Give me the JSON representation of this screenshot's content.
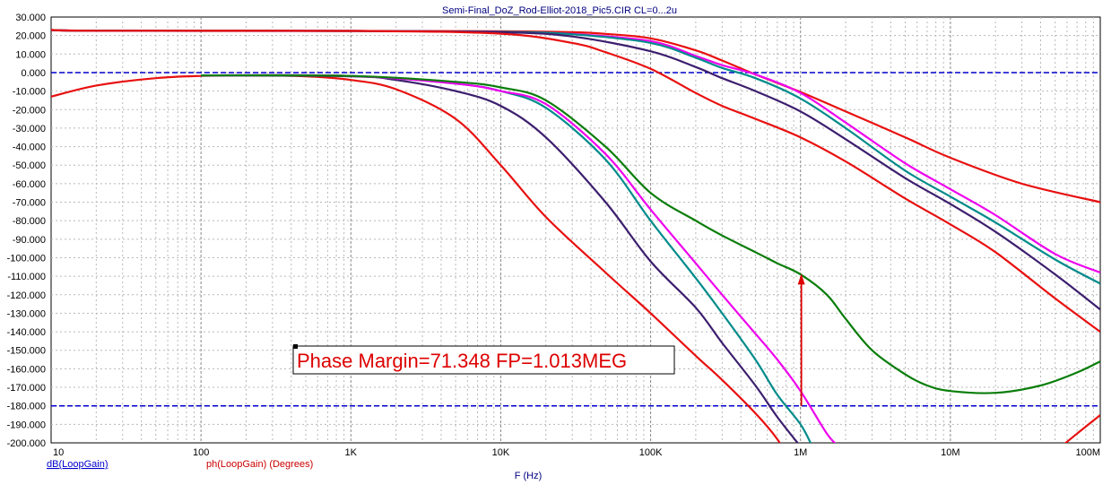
{
  "chart_data": {
    "type": "line",
    "title": "Semi-Final_DoZ_Rod-Elliot-2018_Pic5.CIR CL=0...2u",
    "xlabel": "F (Hz)",
    "ylabel_primary": "dB(LoopGain)",
    "ylabel_secondary": "ph(LoopGain) (Degrees)",
    "x_scale": "log",
    "xlim": [
      10,
      100000000
    ],
    "ylim": [
      -200,
      30
    ],
    "grid": true,
    "x_ticks": [
      {
        "value": 10,
        "label": "10"
      },
      {
        "value": 100,
        "label": "100"
      },
      {
        "value": 1000,
        "label": "1K"
      },
      {
        "value": 10000,
        "label": "10K"
      },
      {
        "value": 100000,
        "label": "100K"
      },
      {
        "value": 1000000,
        "label": "1M"
      },
      {
        "value": 10000000,
        "label": "10M"
      },
      {
        "value": 100000000,
        "label": "100M"
      }
    ],
    "y_ticks": [
      30,
      20,
      10,
      0,
      -10,
      -20,
      -30,
      -40,
      -50,
      -60,
      -70,
      -80,
      -90,
      -100,
      -110,
      -120,
      -130,
      -140,
      -150,
      -160,
      -170,
      -180,
      -190,
      -200
    ],
    "y_tick_labels": [
      "30.000",
      "20.000",
      "10.000",
      "0.000",
      "-10.000",
      "-20.000",
      "-30.000",
      "-40.000",
      "-50.000",
      "-60.000",
      "-70.000",
      "-80.000",
      "-90.000",
      "-100.000",
      "-110.000",
      "-120.000",
      "-130.000",
      "-140.000",
      "-150.000",
      "-160.000",
      "-170.000",
      "-180.000",
      "-190.000",
      "-200.000"
    ],
    "reference_lines": [
      {
        "y": 0,
        "color": "#0000cc",
        "style": "dashed"
      },
      {
        "y": -180,
        "color": "#0000cc",
        "style": "dashed"
      }
    ],
    "series": [
      {
        "group": "gain",
        "color": "#e81010",
        "points": [
          [
            10,
            23
          ],
          [
            20,
            22.6
          ],
          [
            100,
            22.5
          ],
          [
            1000,
            22.5
          ],
          [
            10000,
            22.3
          ],
          [
            30000,
            21.8
          ],
          [
            50000,
            20.9
          ],
          [
            100000,
            18.5
          ],
          [
            200000,
            12
          ],
          [
            300000,
            6.5
          ],
          [
            500000,
            -1
          ],
          [
            1000000,
            -10.5
          ],
          [
            2000000,
            -21
          ],
          [
            5000000,
            -35
          ],
          [
            10000000,
            -46
          ],
          [
            30000000,
            -60
          ],
          [
            100000000,
            -70
          ]
        ]
      },
      {
        "group": "gain",
        "color": "#ee00ee",
        "points": [
          [
            10,
            23
          ],
          [
            20,
            22.6
          ],
          [
            1000,
            22.5
          ],
          [
            10000,
            22
          ],
          [
            30000,
            20.9
          ],
          [
            100000,
            17
          ],
          [
            200000,
            9
          ],
          [
            300000,
            4
          ],
          [
            500000,
            -1
          ],
          [
            1000000,
            -11
          ],
          [
            2000000,
            -27
          ],
          [
            5000000,
            -49
          ],
          [
            10000000,
            -63
          ],
          [
            20000000,
            -77
          ],
          [
            50000000,
            -98
          ],
          [
            100000000,
            -108
          ]
        ]
      },
      {
        "group": "gain",
        "color": "#008b8b",
        "points": [
          [
            10,
            23
          ],
          [
            20,
            22.6
          ],
          [
            1000,
            22.5
          ],
          [
            10000,
            22
          ],
          [
            30000,
            20.7
          ],
          [
            100000,
            16
          ],
          [
            200000,
            8
          ],
          [
            300000,
            2.5
          ],
          [
            500000,
            -3
          ],
          [
            1000000,
            -14
          ],
          [
            2000000,
            -30
          ],
          [
            5000000,
            -53
          ],
          [
            10000000,
            -67
          ],
          [
            20000000,
            -81
          ],
          [
            50000000,
            -101
          ],
          [
            100000000,
            -114
          ]
        ]
      },
      {
        "group": "gain",
        "color": "#3c1e6e",
        "points": [
          [
            10,
            23
          ],
          [
            20,
            22.6
          ],
          [
            1000,
            22.5
          ],
          [
            10000,
            21.8
          ],
          [
            30000,
            19.5
          ],
          [
            100000,
            11.5
          ],
          [
            200000,
            3
          ],
          [
            300000,
            -3
          ],
          [
            500000,
            -10
          ],
          [
            1000000,
            -21
          ],
          [
            2000000,
            -36
          ],
          [
            5000000,
            -57
          ],
          [
            10000000,
            -71
          ],
          [
            20000000,
            -86
          ],
          [
            50000000,
            -109
          ],
          [
            100000000,
            -128
          ]
        ]
      },
      {
        "group": "gain",
        "color": "#e81010",
        "points": [
          [
            10,
            23
          ],
          [
            20,
            22.6
          ],
          [
            1000,
            22.5
          ],
          [
            10000,
            21
          ],
          [
            30000,
            16
          ],
          [
            50000,
            11
          ],
          [
            100000,
            2
          ],
          [
            200000,
            -11
          ],
          [
            300000,
            -18
          ],
          [
            500000,
            -25
          ],
          [
            1000000,
            -35
          ],
          [
            2000000,
            -48
          ],
          [
            5000000,
            -68
          ],
          [
            10000000,
            -82
          ],
          [
            20000000,
            -97
          ],
          [
            50000000,
            -122
          ],
          [
            100000000,
            -140
          ]
        ]
      },
      {
        "group": "phase",
        "color": "#e81010",
        "points": [
          [
            10,
            -13
          ],
          [
            20,
            -7
          ],
          [
            50,
            -3
          ],
          [
            100,
            -1.8
          ],
          [
            200,
            -1.5
          ],
          [
            500,
            -2
          ],
          [
            1000,
            -4
          ],
          [
            2000,
            -9
          ],
          [
            5000,
            -25
          ],
          [
            10000,
            -50
          ],
          [
            20000,
            -78
          ],
          [
            50000,
            -108
          ],
          [
            100000,
            -130
          ],
          [
            200000,
            -153
          ],
          [
            300000,
            -166
          ],
          [
            500000,
            -184
          ],
          [
            700000,
            -198
          ],
          [
            850000,
            -210
          ]
        ]
      },
      {
        "group": "phase",
        "color": "#3c1e6e",
        "points": [
          [
            100,
            -1.5
          ],
          [
            1000,
            -2
          ],
          [
            2000,
            -4
          ],
          [
            5000,
            -10
          ],
          [
            10000,
            -18
          ],
          [
            20000,
            -35
          ],
          [
            50000,
            -70
          ],
          [
            100000,
            -102
          ],
          [
            200000,
            -127
          ],
          [
            300000,
            -146
          ],
          [
            500000,
            -169
          ],
          [
            700000,
            -186
          ],
          [
            1000000,
            -202
          ]
        ]
      },
      {
        "group": "phase",
        "color": "#008b8b",
        "points": [
          [
            100,
            -1.5
          ],
          [
            1000,
            -1.8
          ],
          [
            5000,
            -6
          ],
          [
            10000,
            -10
          ],
          [
            20000,
            -19
          ],
          [
            50000,
            -47
          ],
          [
            100000,
            -80
          ],
          [
            200000,
            -111
          ],
          [
            300000,
            -130
          ],
          [
            500000,
            -155
          ],
          [
            700000,
            -174
          ],
          [
            1000000,
            -190
          ],
          [
            1200000,
            -202
          ]
        ]
      },
      {
        "group": "phase",
        "color": "#ee00ee",
        "points": [
          [
            100,
            -1.5
          ],
          [
            1000,
            -1.8
          ],
          [
            5000,
            -6
          ],
          [
            10000,
            -10
          ],
          [
            20000,
            -17
          ],
          [
            50000,
            -44
          ],
          [
            100000,
            -74
          ],
          [
            200000,
            -103
          ],
          [
            300000,
            -120
          ],
          [
            500000,
            -141
          ],
          [
            700000,
            -155
          ],
          [
            1000000,
            -172
          ],
          [
            1500000,
            -195
          ],
          [
            1800000,
            -202
          ]
        ]
      },
      {
        "group": "phase",
        "color": "#0a7d0a",
        "points": [
          [
            100,
            -1.5
          ],
          [
            1000,
            -1.8
          ],
          [
            5000,
            -5
          ],
          [
            10000,
            -8
          ],
          [
            20000,
            -15
          ],
          [
            50000,
            -40
          ],
          [
            100000,
            -65
          ],
          [
            200000,
            -80
          ],
          [
            300000,
            -88
          ],
          [
            500000,
            -97
          ],
          [
            700000,
            -103
          ],
          [
            1000000,
            -109
          ],
          [
            1500000,
            -120
          ],
          [
            2000000,
            -133
          ],
          [
            3000000,
            -150
          ],
          [
            5000000,
            -163
          ],
          [
            7000000,
            -169
          ],
          [
            10000000,
            -172
          ],
          [
            20000000,
            -173
          ],
          [
            40000000,
            -169
          ],
          [
            70000000,
            -162
          ],
          [
            100000000,
            -156
          ]
        ]
      },
      {
        "group": "phase",
        "color": "#e81010",
        "points": [
          [
            55000000,
            -202
          ],
          [
            70000000,
            -195
          ],
          [
            100000000,
            -185
          ]
        ]
      }
    ],
    "annotations": [
      {
        "text": "Phase Margin=71.348 FP=1.013MEG",
        "color": "#dd0000"
      }
    ],
    "markers": [
      {
        "type": "arrow",
        "x": 1013000,
        "y_from": -180,
        "y_to": -108.65,
        "color": "#dd0000"
      }
    ]
  }
}
